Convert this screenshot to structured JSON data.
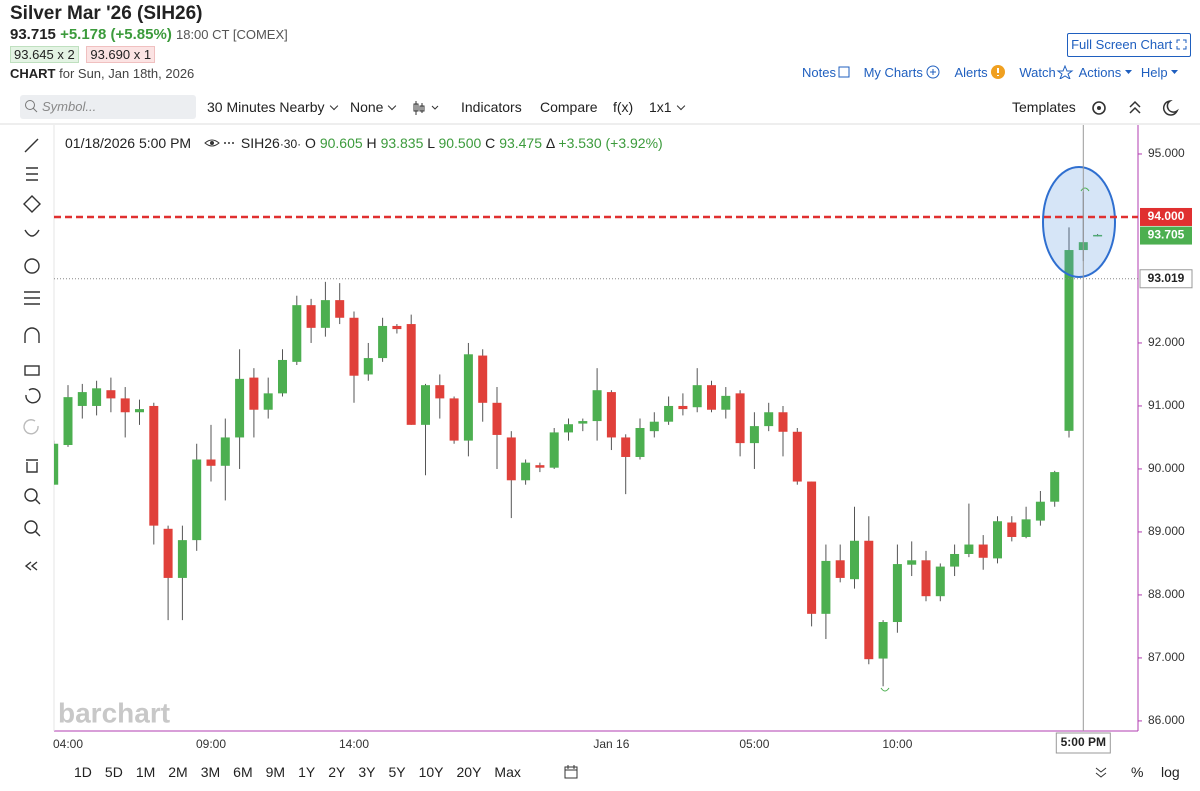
{
  "header": {
    "title": "Silver Mar '26 (SIH26)",
    "last": "93.715",
    "change": "+5.178 (+5.85%)",
    "time": "18:00 CT [COMEX]",
    "bid": "93.645 x 2",
    "ask": "93.690 x 1",
    "chart_label": "CHART",
    "chart_date": "for Sun, Jan 18th, 2026",
    "full_screen": "Full Screen Chart"
  },
  "nav": [
    "Notes",
    "My Charts",
    "Alerts",
    "Watch",
    "Actions",
    "Help"
  ],
  "toolbar": {
    "symbol_placeholder": "Symbol...",
    "interval": "30 Minutes Nearby",
    "style": "None",
    "items": [
      "Indicators",
      "Compare",
      "f(x)",
      "1x1"
    ],
    "templates": "Templates"
  },
  "legend": {
    "date": "01/18/2026 5:00 PM",
    "symbol": "SIH26",
    "interval": "·30·",
    "o_label": "O",
    "o": "90.605",
    "h_label": "H",
    "h": "93.835",
    "l_label": "L",
    "l": "90.500",
    "c_label": "C",
    "c": "93.475",
    "d_label": "Δ",
    "d": "+3.530 (+3.92%)"
  },
  "ranges": [
    "1D",
    "5D",
    "1M",
    "2M",
    "3M",
    "6M",
    "9M",
    "1Y",
    "2Y",
    "3Y",
    "5Y",
    "10Y",
    "20Y",
    "Max"
  ],
  "bottom_right": [
    "%",
    "log"
  ],
  "watermark": "barchart",
  "chart_data": {
    "type": "candlestick",
    "categories": [
      null,
      "04:00",
      null,
      null,
      null,
      null,
      null,
      null,
      null,
      null,
      null,
      "09:00",
      null,
      null,
      null,
      null,
      null,
      null,
      null,
      null,
      null,
      "14:00",
      null,
      null,
      null,
      null,
      null,
      null,
      null,
      null,
      null,
      null,
      null,
      null,
      null,
      null,
      null,
      null,
      null,
      "Jan 16",
      null,
      null,
      null,
      null,
      null,
      null,
      null,
      null,
      null,
      "05:00",
      null,
      null,
      null,
      null,
      null,
      null,
      null,
      null,
      null,
      "10:00",
      null,
      null,
      null,
      null,
      null,
      null,
      null,
      null,
      null,
      null,
      null,
      null,
      null,
      null
    ],
    "open": [
      89.75,
      90.38,
      91.0,
      91.0,
      91.25,
      91.12,
      90.9,
      91.0,
      89.05,
      88.27,
      88.87,
      90.15,
      90.05,
      90.5,
      91.45,
      90.94,
      91.2,
      91.7,
      92.6,
      92.24,
      92.68,
      92.4,
      91.5,
      91.76,
      92.27,
      92.3,
      90.7,
      91.33,
      91.12,
      90.45,
      91.8,
      91.05,
      90.5,
      89.82,
      90.06,
      90.02,
      90.58,
      90.72,
      90.76,
      91.22,
      90.5,
      90.19,
      90.6,
      90.75,
      91.0,
      90.98,
      91.33,
      90.94,
      91.2,
      90.41,
      90.68,
      90.9,
      90.59,
      89.8,
      87.7,
      88.55,
      88.25,
      88.86,
      86.99,
      87.57,
      88.48,
      88.55,
      87.98,
      88.45,
      88.65,
      88.8,
      88.58,
      89.15,
      88.92,
      89.18,
      89.48,
      90.605,
      93.475,
      93.7
    ],
    "high": [
      90.45,
      91.33,
      91.35,
      91.4,
      91.45,
      91.3,
      91.1,
      91.05,
      89.1,
      89.1,
      90.4,
      90.7,
      90.8,
      91.9,
      91.6,
      91.45,
      91.9,
      92.75,
      92.7,
      92.97,
      92.95,
      92.5,
      92.0,
      92.4,
      92.3,
      92.45,
      91.35,
      91.5,
      91.15,
      92.0,
      91.9,
      91.3,
      90.6,
      90.15,
      90.1,
      90.65,
      90.8,
      90.8,
      91.6,
      91.25,
      90.55,
      90.8,
      90.9,
      91.15,
      91.2,
      91.6,
      91.4,
      91.3,
      91.25,
      90.9,
      91.05,
      91.0,
      90.65,
      89.8,
      88.8,
      88.8,
      89.4,
      89.25,
      87.6,
      88.8,
      88.85,
      88.7,
      88.5,
      88.8,
      89.45,
      88.95,
      89.25,
      89.25,
      89.4,
      89.65,
      89.97,
      93.835,
      94.4,
      93.73
    ],
    "low": [
      89.75,
      90.35,
      90.8,
      90.85,
      90.9,
      90.5,
      90.7,
      88.8,
      87.6,
      87.6,
      88.7,
      89.8,
      89.5,
      90.0,
      90.5,
      90.8,
      91.15,
      91.65,
      92.0,
      92.1,
      92.3,
      91.05,
      91.4,
      91.7,
      92.15,
      90.7,
      89.9,
      90.8,
      90.4,
      90.2,
      90.75,
      90.0,
      89.22,
      89.75,
      89.95,
      90.0,
      90.45,
      90.6,
      90.45,
      90.3,
      89.6,
      90.15,
      90.5,
      90.7,
      90.85,
      90.9,
      90.9,
      90.8,
      90.2,
      90.0,
      90.6,
      90.2,
      89.75,
      87.5,
      87.3,
      88.2,
      88.1,
      86.9,
      86.55,
      87.4,
      88.3,
      87.9,
      87.9,
      88.3,
      88.6,
      88.4,
      88.5,
      88.85,
      88.9,
      89.1,
      89.4,
      90.5,
      93.3,
      93.69
    ],
    "close": [
      90.4,
      91.14,
      91.22,
      91.28,
      91.12,
      90.9,
      90.95,
      89.1,
      88.27,
      88.87,
      90.15,
      90.05,
      90.5,
      91.43,
      90.94,
      91.2,
      91.73,
      92.6,
      92.24,
      92.68,
      92.4,
      91.48,
      91.76,
      92.27,
      92.22,
      90.7,
      91.33,
      91.12,
      90.45,
      91.82,
      91.05,
      90.54,
      89.82,
      90.1,
      90.02,
      90.58,
      90.71,
      90.76,
      91.25,
      90.5,
      90.19,
      90.65,
      90.75,
      91.0,
      90.95,
      91.33,
      90.94,
      91.16,
      90.41,
      90.68,
      90.9,
      90.59,
      89.8,
      87.7,
      88.54,
      88.27,
      88.86,
      86.98,
      87.57,
      88.49,
      88.55,
      87.98,
      88.45,
      88.65,
      88.8,
      88.59,
      89.17,
      88.92,
      89.2,
      89.48,
      89.95,
      93.475,
      93.6,
      93.715
    ],
    "up_color": "#4caf50",
    "down_color": "#e0403a",
    "ylim": [
      85.84,
      95.46
    ],
    "yticks": [
      {
        "value": 86,
        "label": "86.000"
      },
      {
        "value": 87,
        "label": "87.000"
      },
      {
        "value": 88,
        "label": "88.000"
      },
      {
        "value": 89,
        "label": "89.000"
      },
      {
        "value": 90,
        "label": "90.000"
      },
      {
        "value": 91,
        "label": "91.000"
      },
      {
        "value": 92,
        "label": "92.000"
      },
      {
        "value": 95,
        "label": "95.000"
      }
    ],
    "price_lines": [
      {
        "value": 94,
        "label": "94.000",
        "color": "#e03030",
        "style": "dashed"
      },
      {
        "value": 93.705,
        "label": "93.705",
        "color": "#4caf50",
        "style": "none"
      },
      {
        "value": 93.019,
        "label": "93.019",
        "color": "#888888",
        "style": "dotted"
      }
    ],
    "crosshair_label": "5:00 PM"
  }
}
